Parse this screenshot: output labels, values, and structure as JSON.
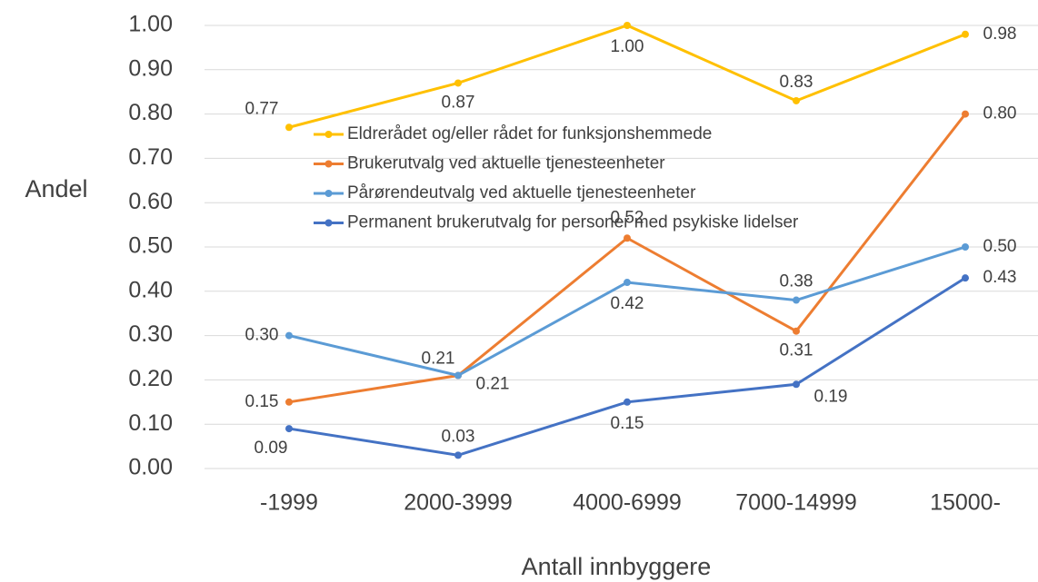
{
  "chart_data": {
    "type": "line",
    "x_label": "Antall innbyggere",
    "y_label": "Andel",
    "categories": [
      "-1999",
      "2000-3999",
      "4000-6999",
      "7000-14999",
      "15000-"
    ],
    "series": [
      {
        "name": "Eldrerådet og/eller rådet for funksjonshemmede",
        "color": "#ffc000",
        "values": [
          0.77,
          0.87,
          1.0,
          0.83,
          0.98
        ],
        "value_labels": [
          "0.77",
          "0.87",
          "1.00",
          "0.83",
          "0.98"
        ]
      },
      {
        "name": "Brukerutvalg ved aktuelle tjenesteenheter",
        "color": "#ed7d31",
        "values": [
          0.15,
          0.21,
          0.52,
          0.31,
          0.8
        ],
        "value_labels": [
          "0.15",
          "0.21",
          "0.52",
          "0.31",
          "0.80"
        ]
      },
      {
        "name": "Pårørendeutvalg ved aktuelle tjenesteenheter",
        "color": "#5b9bd5",
        "values": [
          0.3,
          0.21,
          0.42,
          0.38,
          0.5
        ],
        "value_labels": [
          "0.30",
          "0.21",
          "0.42",
          "0.38",
          "0.50"
        ]
      },
      {
        "name": "Permanent brukerutvalg for personer med psykiske lidelser",
        "color": "#4472c4",
        "values": [
          0.09,
          0.03,
          0.15,
          0.19,
          0.43
        ],
        "value_labels": [
          "0.09",
          "0.03",
          "0.15",
          "0.19",
          "0.43"
        ]
      }
    ],
    "ylim": [
      0,
      1
    ],
    "yticks": [
      {
        "value": 0,
        "label": "0.00"
      },
      {
        "value": 0.1,
        "label": "0.10"
      },
      {
        "value": 0.2,
        "label": "0.20"
      },
      {
        "value": 0.3,
        "label": "0.30"
      },
      {
        "value": 0.4,
        "label": "0.40"
      },
      {
        "value": 0.5,
        "label": "0.50"
      },
      {
        "value": 0.6,
        "label": "0.60"
      },
      {
        "value": 0.7,
        "label": "0.70"
      },
      {
        "value": 0.8,
        "label": "0.80"
      },
      {
        "value": 0.9,
        "label": "0.90"
      },
      {
        "value": 1,
        "label": "1.00"
      }
    ],
    "grid": true
  }
}
